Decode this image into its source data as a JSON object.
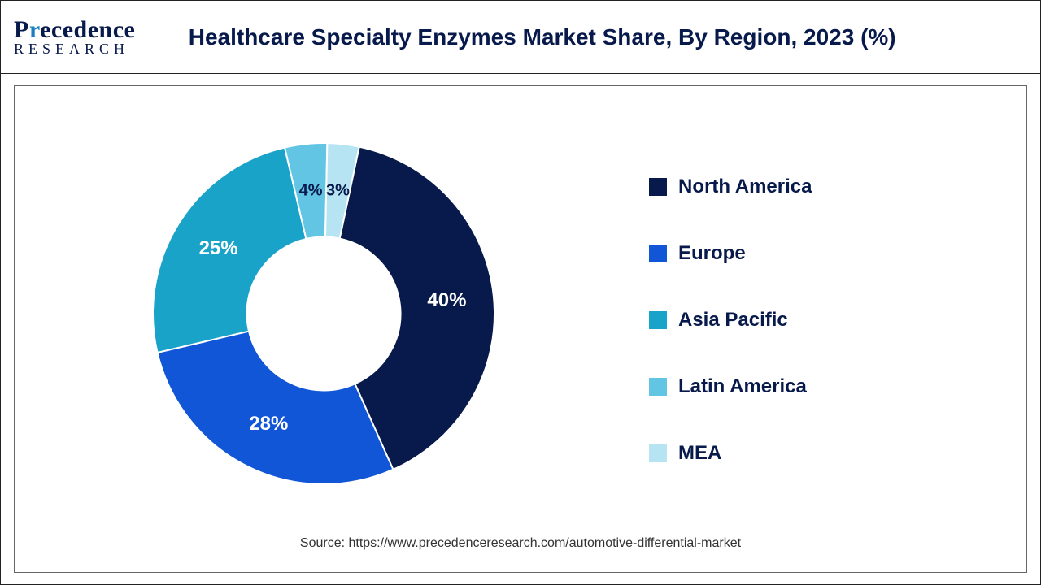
{
  "logo": {
    "brand_pre": "P",
    "brand_accent": "r",
    "brand_post": "ecedence",
    "sub": "RESEARCH"
  },
  "title": "Healthcare Specialty Enzymes Market Share, By Region, 2023 (%)",
  "chart": {
    "type": "donut",
    "inner_radius_ratio": 0.45,
    "background_color": "#ffffff",
    "slices": [
      {
        "label": "North America",
        "value": 40,
        "display": "40%",
        "color": "#081a4b"
      },
      {
        "label": "Europe",
        "value": 28,
        "display": "28%",
        "color": "#1156d6"
      },
      {
        "label": "Asia Pacific",
        "value": 25,
        "display": "25%",
        "color": "#1aa3c9"
      },
      {
        "label": "Latin America",
        "value": 4,
        "display": "4%",
        "color": "#63c5e4"
      },
      {
        "label": "MEA",
        "value": 3,
        "display": "3%",
        "color": "#b6e4f2"
      }
    ],
    "start_angle_deg": 12,
    "label_fontsize": 24,
    "label_color": "#ffffff",
    "title_color": "#081a4b",
    "title_fontsize": 28
  },
  "legend": {
    "fontsize": 24,
    "font_weight": "bold",
    "text_color": "#081a4b",
    "swatch_size": 22
  },
  "source": "Source: https://www.precedenceresearch.com/automotive-differential-market"
}
